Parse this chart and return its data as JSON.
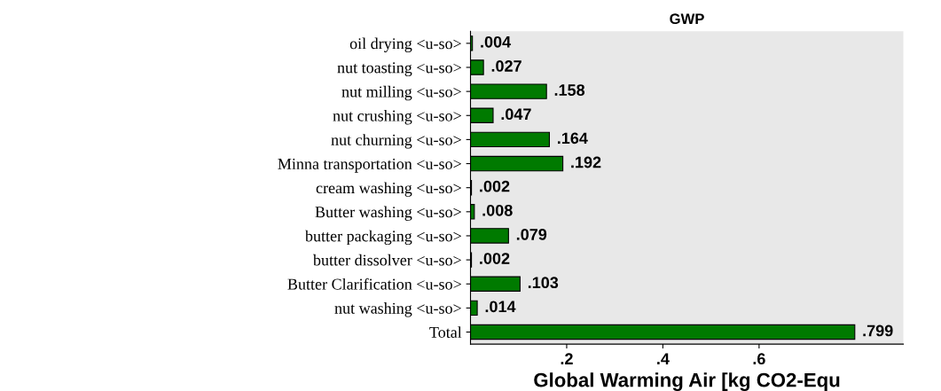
{
  "chart_data": {
    "type": "bar",
    "orientation": "horizontal",
    "title": "GWP",
    "xlabel": "Global Warming Air [kg CO2-Equ",
    "categories": [
      "oil drying <u-so>",
      "nut toasting <u-so>",
      "nut milling <u-so>",
      "nut crushing <u-so>",
      "nut churning <u-so>",
      "Minna transportation <u-so>",
      "cream washing <u-so>",
      "Butter washing <u-so>",
      "butter packaging <u-so>",
      "butter dissolver <u-so>",
      "Butter Clarification <u-so>",
      "nut washing <u-so>",
      "Total"
    ],
    "values": [
      0.004,
      0.027,
      0.158,
      0.047,
      0.164,
      0.192,
      0.002,
      0.008,
      0.079,
      0.002,
      0.103,
      0.014,
      0.799
    ],
    "value_labels": [
      ".004",
      ".027",
      ".158",
      ".047",
      ".164",
      ".192",
      ".002",
      ".008",
      ".079",
      ".002",
      ".103",
      ".014",
      ".799"
    ],
    "color": "#007a00",
    "xlim": [
      0,
      0.9
    ],
    "xticks": [
      {
        "value": 0.2,
        "label": ".2"
      },
      {
        "value": 0.4,
        "label": ".4"
      },
      {
        "value": 0.6,
        "label": ".6"
      }
    ]
  }
}
